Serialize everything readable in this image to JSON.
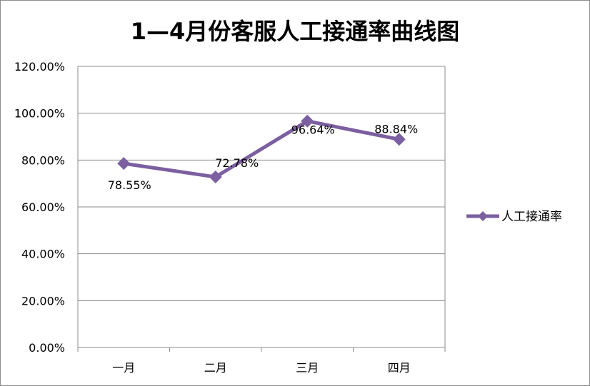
{
  "chart_data": {
    "type": "line",
    "title": "1—4月份客服人工接通率曲线图",
    "categories": [
      "一月",
      "二月",
      "三月",
      "四月"
    ],
    "series": [
      {
        "name": "人工接通率",
        "values": [
          78.55,
          72.78,
          96.64,
          88.84
        ],
        "labels": [
          "78.55%",
          "72.78%",
          "96.64%",
          "88.84%"
        ],
        "color": "#7b5fa0"
      }
    ],
    "ylim": [
      0,
      120
    ],
    "yticks": [
      0,
      20,
      40,
      60,
      80,
      100,
      120
    ],
    "ytick_labels": [
      "0.00%",
      "20.00%",
      "40.00%",
      "60.00%",
      "80.00%",
      "100.00%",
      "120.00%"
    ],
    "xlabel": "",
    "ylabel": "",
    "grid": true,
    "legend": "right"
  }
}
